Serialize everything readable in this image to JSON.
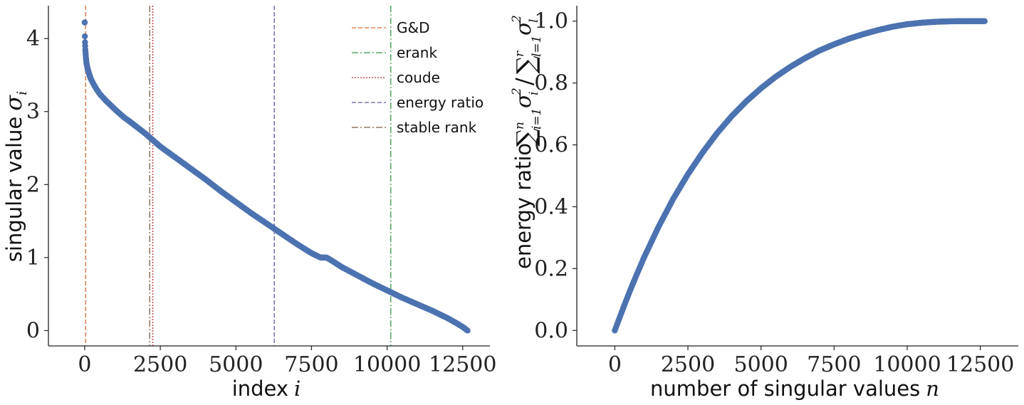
{
  "chart_data": [
    {
      "type": "scatter",
      "xlabel": "index i",
      "ylabel": "singular value σ_i",
      "xlim": [
        -1200,
        13400
      ],
      "ylim": [
        -0.21,
        4.45
      ],
      "xticks": [
        "0",
        "2500",
        "5000",
        "7500",
        "10000",
        "12500"
      ],
      "yticks": [
        "0",
        "1",
        "2",
        "3",
        "4"
      ],
      "series": [
        {
          "x": [
            0,
            5,
            10,
            20,
            40,
            60,
            100,
            150,
            200,
            300,
            400,
            500,
            700,
            1000,
            1300,
            1500,
            2000,
            2500,
            3000,
            3500,
            4000,
            4500,
            5000,
            5500,
            6000,
            6500,
            7000,
            7500,
            7800,
            8000,
            8200,
            8500,
            9000,
            9500,
            10000,
            10500,
            11000,
            11500,
            12000,
            12300,
            12500,
            12660
          ],
          "y": [
            4.22,
            4.03,
            3.95,
            3.85,
            3.74,
            3.66,
            3.58,
            3.51,
            3.45,
            3.37,
            3.3,
            3.24,
            3.15,
            3.03,
            2.92,
            2.86,
            2.7,
            2.52,
            2.37,
            2.22,
            2.07,
            1.91,
            1.76,
            1.61,
            1.47,
            1.33,
            1.19,
            1.06,
            1.0,
            1.0,
            0.95,
            0.87,
            0.76,
            0.65,
            0.55,
            0.45,
            0.36,
            0.27,
            0.17,
            0.1,
            0.05,
            0.0
          ]
        }
      ],
      "vlines": [
        {
          "label": "G&D",
          "x": 30,
          "color": "#dd8452",
          "style": "dashed"
        },
        {
          "label": "erank",
          "x": 10120,
          "color": "#55a868",
          "style": "dashdot"
        },
        {
          "label": "coude",
          "x": 2250,
          "color": "#c44e52",
          "style": "dotted"
        },
        {
          "label": "energy ratio",
          "x": 6270,
          "color": "#8172b3",
          "style": "dashed"
        },
        {
          "label": "stable rank",
          "x": 2150,
          "color": "#937860",
          "style": "dashdot"
        }
      ],
      "legend_position": "top-right",
      "grid": false
    },
    {
      "type": "scatter",
      "xlabel": "number of singular values n",
      "ylabel": "energy ratio Σ_{i=1}^{n} σ_i² / Σ_{l=1}^{r} σ_l²",
      "xlim": [
        -1300,
        13800
      ],
      "ylim": [
        -0.05,
        1.05
      ],
      "xticks": [
        "0",
        "2500",
        "5000",
        "7500",
        "10000",
        "12500"
      ],
      "yticks": [
        "0.0",
        "0.2",
        "0.4",
        "0.6",
        "0.8",
        "1.0"
      ],
      "series": [
        {
          "x": [
            0,
            250,
            500,
            750,
            1000,
            1500,
            2000,
            2500,
            3000,
            3500,
            4000,
            4500,
            5000,
            5500,
            6000,
            6500,
            7000,
            7500,
            8000,
            8500,
            9000,
            9500,
            10000,
            10500,
            11000,
            11500,
            12000,
            12660
          ],
          "y": [
            0.0,
            0.063,
            0.124,
            0.181,
            0.236,
            0.336,
            0.426,
            0.505,
            0.575,
            0.638,
            0.693,
            0.741,
            0.783,
            0.82,
            0.852,
            0.88,
            0.905,
            0.925,
            0.943,
            0.958,
            0.971,
            0.982,
            0.99,
            0.995,
            0.998,
            0.9995,
            1.0,
            1.0
          ]
        }
      ],
      "grid": false
    }
  ],
  "text": {
    "left_xlabel": "index",
    "left_xlabel_var": "i",
    "left_ylabel": "singular value",
    "left_ylabel_var": "σ",
    "left_ylabel_sub": "i",
    "right_xlabel": "number of singular values",
    "right_xlabel_var": "n",
    "right_ylabel": "energy ratio"
  },
  "colors": {
    "points": "#4c72b0",
    "axis": "#222222"
  }
}
